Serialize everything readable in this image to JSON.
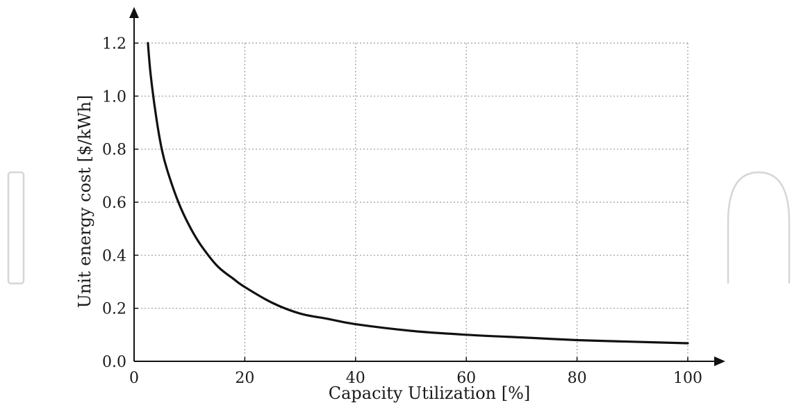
{
  "chart_data": {
    "type": "line",
    "title": "",
    "xlabel": "Capacity Utilization [%]",
    "ylabel": "Unit energy cost [$/kWh]",
    "xlim": [
      0,
      100
    ],
    "ylim": [
      0,
      1.2
    ],
    "x_ticks": [
      "0",
      "20",
      "40",
      "60",
      "80",
      "100"
    ],
    "y_ticks": [
      "0.0",
      "0.2",
      "0.4",
      "0.6",
      "0.8",
      "1.0",
      "1.2"
    ],
    "grid": true,
    "series": [
      {
        "color": "#111111",
        "x": [
          2.5,
          3,
          4,
          5,
          6,
          8,
          10,
          12,
          15,
          18,
          20,
          25,
          30,
          35,
          40,
          50,
          60,
          70,
          80,
          90,
          100
        ],
        "y": [
          1.2,
          1.08,
          0.92,
          0.8,
          0.72,
          0.6,
          0.51,
          0.44,
          0.36,
          0.31,
          0.28,
          0.22,
          0.18,
          0.16,
          0.14,
          0.115,
          0.1,
          0.09,
          0.08,
          0.074,
          0.068
        ]
      }
    ]
  }
}
